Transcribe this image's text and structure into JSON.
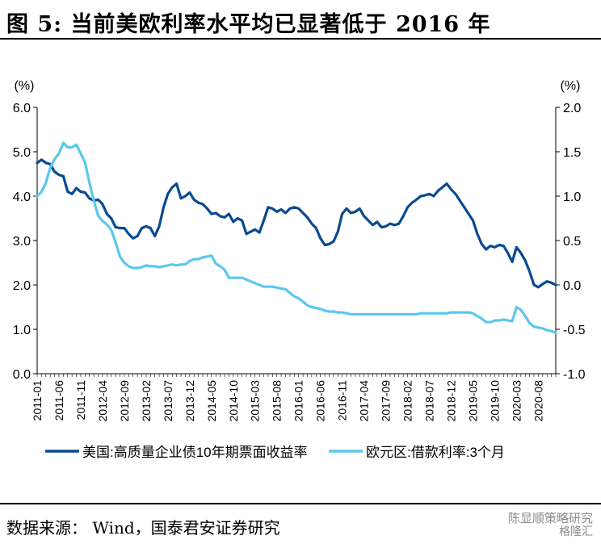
{
  "figure": {
    "title": "图 5:  当前美欧利率水平均已显著低于 2016 年",
    "source": "数据来源： Wind，国泰君安证券研究",
    "watermark": "陈显顺策略研究",
    "watermark_sub": "格隆汇",
    "colors": {
      "us": "#0a4a8f",
      "eu": "#5bc8ee",
      "axis": "#000000"
    }
  },
  "chart_data": {
    "type": "line",
    "title": "",
    "left_axis": {
      "unit": "(%)",
      "ylim": [
        0,
        6
      ],
      "ticks": [
        "0.0",
        "1.0",
        "2.0",
        "3.0",
        "4.0",
        "5.0",
        "6.0"
      ]
    },
    "right_axis": {
      "unit": "(%)",
      "ylim": [
        -1,
        2
      ],
      "ticks": [
        "-1.0",
        "-0.5",
        "0.0",
        "0.5",
        "1.0",
        "1.5",
        "2.0"
      ]
    },
    "x_ticks": [
      "2011-01",
      "2011-06",
      "2011-11",
      "2012-04",
      "2012-09",
      "2013-02",
      "2013-07",
      "2013-12",
      "2014-05",
      "2014-10",
      "2015-03",
      "2015-08",
      "2016-01",
      "2016-06",
      "2016-11",
      "2017-04",
      "2017-09",
      "2018-02",
      "2018-07",
      "2018-12",
      "2019-05",
      "2019-10",
      "2020-03",
      "2020-08"
    ],
    "x_range": [
      "2011-01",
      "2020-12"
    ],
    "legend_position": "bottom",
    "grid": false,
    "series": [
      {
        "name": "美国:高质量企业债10年期票面收益率",
        "axis": "left",
        "points": [
          [
            "2011-01",
            4.75
          ],
          [
            "2011-02",
            4.82
          ],
          [
            "2011-03",
            4.75
          ],
          [
            "2011-04",
            4.72
          ],
          [
            "2011-05",
            4.55
          ],
          [
            "2011-06",
            4.48
          ],
          [
            "2011-07",
            4.45
          ],
          [
            "2011-08",
            4.1
          ],
          [
            "2011-09",
            4.05
          ],
          [
            "2011-10",
            4.18
          ],
          [
            "2011-11",
            4.1
          ],
          [
            "2011-12",
            4.08
          ],
          [
            "2012-01",
            3.95
          ],
          [
            "2012-02",
            3.9
          ],
          [
            "2012-03",
            3.92
          ],
          [
            "2012-04",
            3.82
          ],
          [
            "2012-05",
            3.6
          ],
          [
            "2012-06",
            3.5
          ],
          [
            "2012-07",
            3.3
          ],
          [
            "2012-08",
            3.28
          ],
          [
            "2012-09",
            3.28
          ],
          [
            "2012-10",
            3.15
          ],
          [
            "2012-11",
            3.05
          ],
          [
            "2012-12",
            3.1
          ],
          [
            "2013-01",
            3.28
          ],
          [
            "2013-02",
            3.32
          ],
          [
            "2013-03",
            3.28
          ],
          [
            "2013-04",
            3.1
          ],
          [
            "2013-05",
            3.32
          ],
          [
            "2013-06",
            3.75
          ],
          [
            "2013-07",
            4.05
          ],
          [
            "2013-08",
            4.2
          ],
          [
            "2013-09",
            4.28
          ],
          [
            "2013-10",
            3.95
          ],
          [
            "2013-11",
            4.0
          ],
          [
            "2013-12",
            4.08
          ],
          [
            "2014-01",
            3.92
          ],
          [
            "2014-02",
            3.85
          ],
          [
            "2014-03",
            3.82
          ],
          [
            "2014-04",
            3.72
          ],
          [
            "2014-05",
            3.6
          ],
          [
            "2014-06",
            3.62
          ],
          [
            "2014-07",
            3.55
          ],
          [
            "2014-08",
            3.52
          ],
          [
            "2014-09",
            3.6
          ],
          [
            "2014-10",
            3.42
          ],
          [
            "2014-11",
            3.5
          ],
          [
            "2014-12",
            3.45
          ],
          [
            "2015-01",
            3.15
          ],
          [
            "2015-02",
            3.2
          ],
          [
            "2015-03",
            3.25
          ],
          [
            "2015-04",
            3.18
          ],
          [
            "2015-05",
            3.45
          ],
          [
            "2015-06",
            3.75
          ],
          [
            "2015-07",
            3.72
          ],
          [
            "2015-08",
            3.65
          ],
          [
            "2015-09",
            3.7
          ],
          [
            "2015-10",
            3.62
          ],
          [
            "2015-11",
            3.72
          ],
          [
            "2015-12",
            3.75
          ],
          [
            "2016-01",
            3.72
          ],
          [
            "2016-02",
            3.62
          ],
          [
            "2016-03",
            3.52
          ],
          [
            "2016-04",
            3.38
          ],
          [
            "2016-05",
            3.28
          ],
          [
            "2016-06",
            3.05
          ],
          [
            "2016-07",
            2.9
          ],
          [
            "2016-08",
            2.92
          ],
          [
            "2016-09",
            2.98
          ],
          [
            "2016-10",
            3.2
          ],
          [
            "2016-11",
            3.6
          ],
          [
            "2016-12",
            3.72
          ],
          [
            "2017-01",
            3.62
          ],
          [
            "2017-02",
            3.65
          ],
          [
            "2017-03",
            3.72
          ],
          [
            "2017-04",
            3.55
          ],
          [
            "2017-05",
            3.45
          ],
          [
            "2017-06",
            3.35
          ],
          [
            "2017-07",
            3.42
          ],
          [
            "2017-08",
            3.3
          ],
          [
            "2017-09",
            3.32
          ],
          [
            "2017-10",
            3.38
          ],
          [
            "2017-11",
            3.35
          ],
          [
            "2017-12",
            3.38
          ],
          [
            "2018-01",
            3.55
          ],
          [
            "2018-02",
            3.75
          ],
          [
            "2018-03",
            3.85
          ],
          [
            "2018-04",
            3.92
          ],
          [
            "2018-05",
            4.0
          ],
          [
            "2018-06",
            4.02
          ],
          [
            "2018-07",
            4.05
          ],
          [
            "2018-08",
            4.0
          ],
          [
            "2018-09",
            4.12
          ],
          [
            "2018-10",
            4.2
          ],
          [
            "2018-11",
            4.28
          ],
          [
            "2018-12",
            4.15
          ],
          [
            "2019-01",
            4.05
          ],
          [
            "2019-02",
            3.9
          ],
          [
            "2019-03",
            3.75
          ],
          [
            "2019-04",
            3.6
          ],
          [
            "2019-05",
            3.45
          ],
          [
            "2019-06",
            3.15
          ],
          [
            "2019-07",
            2.92
          ],
          [
            "2019-08",
            2.8
          ],
          [
            "2019-09",
            2.88
          ],
          [
            "2019-10",
            2.85
          ],
          [
            "2019-11",
            2.9
          ],
          [
            "2019-12",
            2.88
          ],
          [
            "2020-01",
            2.72
          ],
          [
            "2020-02",
            2.52
          ],
          [
            "2020-03",
            2.85
          ],
          [
            "2020-04",
            2.72
          ],
          [
            "2020-05",
            2.55
          ],
          [
            "2020-06",
            2.3
          ],
          [
            "2020-07",
            2.0
          ],
          [
            "2020-08",
            1.95
          ],
          [
            "2020-09",
            2.02
          ],
          [
            "2020-10",
            2.08
          ],
          [
            "2020-11",
            2.05
          ],
          [
            "2020-12",
            2.0
          ]
        ]
      },
      {
        "name": "欧元区:借款利率:3个月",
        "axis": "right",
        "points": [
          [
            "2011-01",
            1.0
          ],
          [
            "2011-02",
            1.05
          ],
          [
            "2011-03",
            1.15
          ],
          [
            "2011-04",
            1.32
          ],
          [
            "2011-05",
            1.42
          ],
          [
            "2011-06",
            1.48
          ],
          [
            "2011-07",
            1.6
          ],
          [
            "2011-08",
            1.55
          ],
          [
            "2011-09",
            1.55
          ],
          [
            "2011-10",
            1.58
          ],
          [
            "2011-11",
            1.48
          ],
          [
            "2011-12",
            1.38
          ],
          [
            "2012-01",
            1.15
          ],
          [
            "2012-02",
            0.95
          ],
          [
            "2012-03",
            0.78
          ],
          [
            "2012-04",
            0.72
          ],
          [
            "2012-05",
            0.68
          ],
          [
            "2012-06",
            0.62
          ],
          [
            "2012-07",
            0.48
          ],
          [
            "2012-08",
            0.32
          ],
          [
            "2012-09",
            0.25
          ],
          [
            "2012-10",
            0.21
          ],
          [
            "2012-11",
            0.19
          ],
          [
            "2012-12",
            0.19
          ],
          [
            "2013-01",
            0.2
          ],
          [
            "2013-02",
            0.22
          ],
          [
            "2013-03",
            0.21
          ],
          [
            "2013-04",
            0.21
          ],
          [
            "2013-05",
            0.2
          ],
          [
            "2013-06",
            0.21
          ],
          [
            "2013-07",
            0.22
          ],
          [
            "2013-08",
            0.23
          ],
          [
            "2013-09",
            0.22
          ],
          [
            "2013-10",
            0.23
          ],
          [
            "2013-11",
            0.23
          ],
          [
            "2013-12",
            0.27
          ],
          [
            "2014-01",
            0.29
          ],
          [
            "2014-02",
            0.29
          ],
          [
            "2014-03",
            0.31
          ],
          [
            "2014-04",
            0.32
          ],
          [
            "2014-05",
            0.33
          ],
          [
            "2014-06",
            0.24
          ],
          [
            "2014-07",
            0.21
          ],
          [
            "2014-08",
            0.17
          ],
          [
            "2014-09",
            0.08
          ],
          [
            "2014-10",
            0.08
          ],
          [
            "2014-11",
            0.08
          ],
          [
            "2014-12",
            0.08
          ],
          [
            "2015-01",
            0.06
          ],
          [
            "2015-02",
            0.04
          ],
          [
            "2015-03",
            0.02
          ],
          [
            "2015-04",
            0.0
          ],
          [
            "2015-05",
            -0.02
          ],
          [
            "2015-06",
            -0.02
          ],
          [
            "2015-07",
            -0.02
          ],
          [
            "2015-08",
            -0.03
          ],
          [
            "2015-09",
            -0.04
          ],
          [
            "2015-10",
            -0.05
          ],
          [
            "2015-11",
            -0.09
          ],
          [
            "2015-12",
            -0.13
          ],
          [
            "2016-01",
            -0.15
          ],
          [
            "2016-02",
            -0.19
          ],
          [
            "2016-03",
            -0.23
          ],
          [
            "2016-04",
            -0.25
          ],
          [
            "2016-05",
            -0.26
          ],
          [
            "2016-06",
            -0.27
          ],
          [
            "2016-07",
            -0.29
          ],
          [
            "2016-08",
            -0.3
          ],
          [
            "2016-09",
            -0.3
          ],
          [
            "2016-10",
            -0.31
          ],
          [
            "2016-11",
            -0.31
          ],
          [
            "2016-12",
            -0.32
          ],
          [
            "2017-01",
            -0.33
          ],
          [
            "2017-02",
            -0.33
          ],
          [
            "2017-03",
            -0.33
          ],
          [
            "2017-04",
            -0.33
          ],
          [
            "2017-05",
            -0.33
          ],
          [
            "2017-06",
            -0.33
          ],
          [
            "2017-07",
            -0.33
          ],
          [
            "2017-08",
            -0.33
          ],
          [
            "2017-09",
            -0.33
          ],
          [
            "2017-10",
            -0.33
          ],
          [
            "2017-11",
            -0.33
          ],
          [
            "2017-12",
            -0.33
          ],
          [
            "2018-01",
            -0.33
          ],
          [
            "2018-02",
            -0.33
          ],
          [
            "2018-03",
            -0.33
          ],
          [
            "2018-04",
            -0.33
          ],
          [
            "2018-05",
            -0.32
          ],
          [
            "2018-06",
            -0.32
          ],
          [
            "2018-07",
            -0.32
          ],
          [
            "2018-08",
            -0.32
          ],
          [
            "2018-09",
            -0.32
          ],
          [
            "2018-10",
            -0.32
          ],
          [
            "2018-11",
            -0.32
          ],
          [
            "2018-12",
            -0.31
          ],
          [
            "2019-01",
            -0.31
          ],
          [
            "2019-02",
            -0.31
          ],
          [
            "2019-03",
            -0.31
          ],
          [
            "2019-04",
            -0.31
          ],
          [
            "2019-05",
            -0.32
          ],
          [
            "2019-06",
            -0.35
          ],
          [
            "2019-07",
            -0.38
          ],
          [
            "2019-08",
            -0.42
          ],
          [
            "2019-09",
            -0.42
          ],
          [
            "2019-10",
            -0.4
          ],
          [
            "2019-11",
            -0.4
          ],
          [
            "2019-12",
            -0.39
          ],
          [
            "2020-01",
            -0.4
          ],
          [
            "2020-02",
            -0.41
          ],
          [
            "2020-03",
            -0.25
          ],
          [
            "2020-04",
            -0.28
          ],
          [
            "2020-05",
            -0.35
          ],
          [
            "2020-06",
            -0.43
          ],
          [
            "2020-07",
            -0.47
          ],
          [
            "2020-08",
            -0.48
          ],
          [
            "2020-09",
            -0.49
          ],
          [
            "2020-10",
            -0.51
          ],
          [
            "2020-11",
            -0.52
          ],
          [
            "2020-12",
            -0.54
          ]
        ]
      }
    ]
  }
}
